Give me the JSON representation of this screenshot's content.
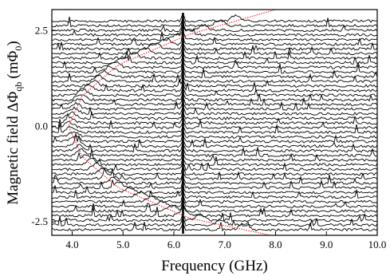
{
  "chart_data": {
    "type": "line",
    "title": "",
    "xlabel": "Frequency (GHz)",
    "ylabel_parts": {
      "main": "Magnetic field ΔΦ",
      "subscript": "qb",
      "unit": "(mΦ",
      "unit_subscript": "0",
      "unit_close": ")"
    },
    "xlim": [
      3.6,
      10.0
    ],
    "ylim": [
      -2.85,
      3.05
    ],
    "x_ticks": [
      4.0,
      5.0,
      6.0,
      7.0,
      8.0,
      9.0,
      10.0
    ],
    "x_tick_labels": [
      "4.0",
      "5.0",
      "6.0",
      "7.0",
      "8.0",
      "9.0",
      "10.0"
    ],
    "y_ticks": [
      2.5,
      0.0,
      -2.5
    ],
    "y_tick_labels": [
      "2.5",
      "0.0",
      "-2.5"
    ],
    "grid": false,
    "traces": {
      "count": 46,
      "flux_range": [
        -2.7,
        2.75
      ],
      "color": "#000000"
    },
    "resonance_line": {
      "frequency": 6.18,
      "color": "#000000"
    },
    "fit_curve": {
      "color": "#e8232a",
      "style": "dotted",
      "points": [
        {
          "flux": 3.05,
          "frequency": 8.0
        },
        {
          "flux": 2.4,
          "frequency": 6.3
        },
        {
          "flux": 1.6,
          "frequency": 4.9
        },
        {
          "flux": 0.8,
          "frequency": 4.2
        },
        {
          "flux": 0.0,
          "frequency": 3.93
        },
        {
          "flux": -0.8,
          "frequency": 4.2
        },
        {
          "flux": -1.6,
          "frequency": 4.9
        },
        {
          "flux": -2.4,
          "frequency": 6.3
        },
        {
          "flux": -2.85,
          "frequency": 7.9
        }
      ]
    }
  }
}
